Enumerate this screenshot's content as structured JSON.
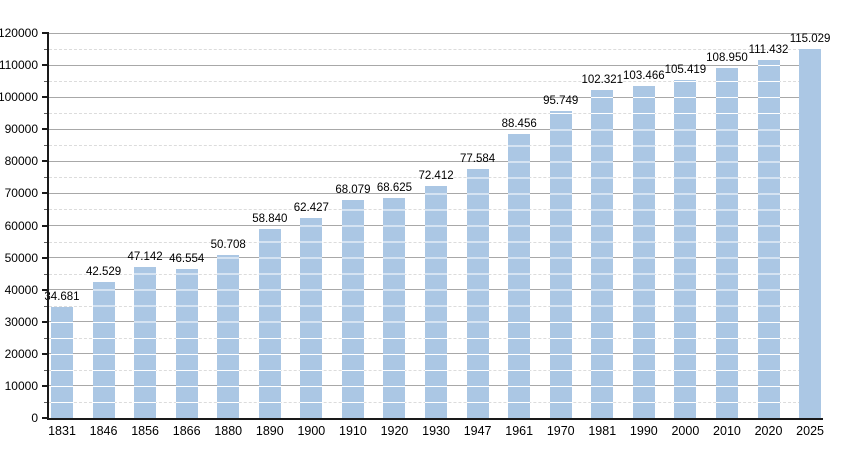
{
  "chart_data": {
    "type": "bar",
    "title": "",
    "xlabel": "",
    "ylabel": "",
    "ylim": [
      0,
      120000
    ],
    "y_major_step": 10000,
    "y_minor_step": 5000,
    "grid": true,
    "legend_position": "none",
    "categories": [
      "1831",
      "1846",
      "1856",
      "1866",
      "1880",
      "1890",
      "1900",
      "1910",
      "1920",
      "1930",
      "1947",
      "1961",
      "1970",
      "1981",
      "1990",
      "2000",
      "2010",
      "2020",
      "2025"
    ],
    "values": [
      34681,
      42529,
      47142,
      46554,
      50708,
      58840,
      62427,
      68079,
      68625,
      72412,
      77584,
      88456,
      95749,
      102321,
      103466,
      105419,
      108950,
      111432,
      115029
    ],
    "bar_labels": [
      "34.681",
      "42.529",
      "47.142",
      "46.554",
      "50.708",
      "58.840",
      "62.427",
      "68.079",
      "68.625",
      "72.412",
      "77.584",
      "88.456",
      "95.749",
      "102.321",
      "103.466",
      "105.419",
      "108.950",
      "111.432",
      "115.029"
    ],
    "y_tick_labels": [
      "0",
      "10000",
      "20000",
      "30000",
      "40000",
      "50000",
      "60000",
      "70000",
      "80000",
      "90000",
      "100000",
      "110000",
      "120000"
    ],
    "colors": {
      "bar_fill": "#abc7e4",
      "bar_gridline_overlay": "#ffffff",
      "major_gridline": "#a8a8a8",
      "minor_gridline": "#dcdcdc",
      "axis": "#1a1a1a",
      "text": "#000000",
      "background": "#ffffff"
    }
  }
}
